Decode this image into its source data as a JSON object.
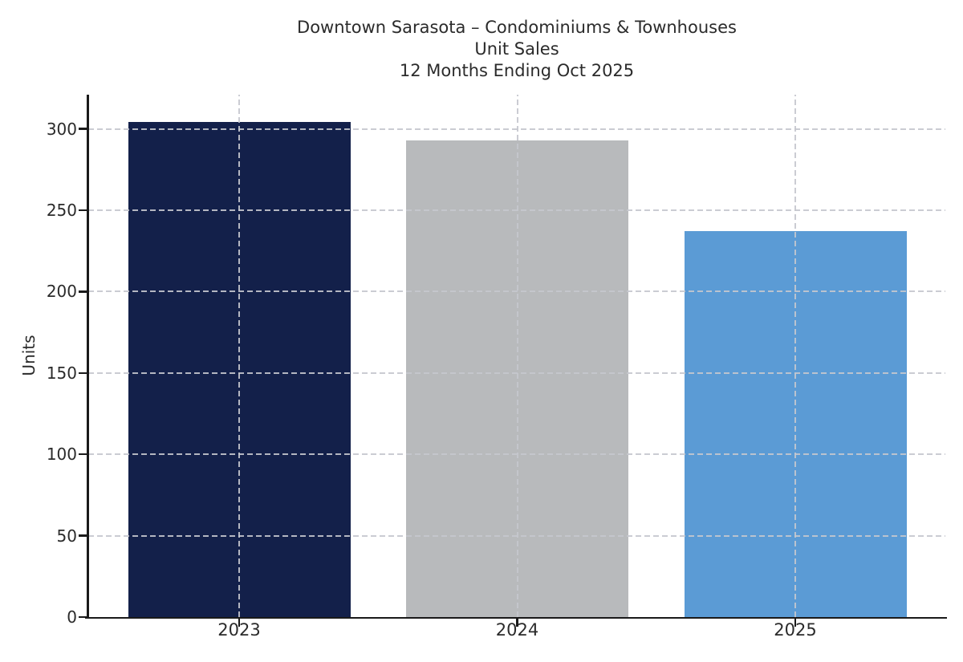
{
  "chart_data": {
    "type": "bar",
    "title_lines": [
      "Downtown Sarasota – Condominiums & Townhouses",
      "Unit Sales",
      "12 Months Ending Oct 2025"
    ],
    "categories": [
      "2023",
      "2024",
      "2025"
    ],
    "values": [
      304,
      293,
      237
    ],
    "bar_colors": [
      "#13204a",
      "#b8babc",
      "#5b9bd5"
    ],
    "xlabel": "",
    "ylabel": "Units",
    "yticks": [
      0,
      50,
      100,
      150,
      200,
      250,
      300
    ],
    "ylim": [
      0,
      321
    ],
    "grid": "dashed light-gray, horizontal at y-ticks and vertical at bar centers, drawn above bars",
    "legend": "none",
    "background_color": "#ffffff",
    "text_color": "#2b2b2b",
    "axis_color": "#1a1a1a"
  }
}
